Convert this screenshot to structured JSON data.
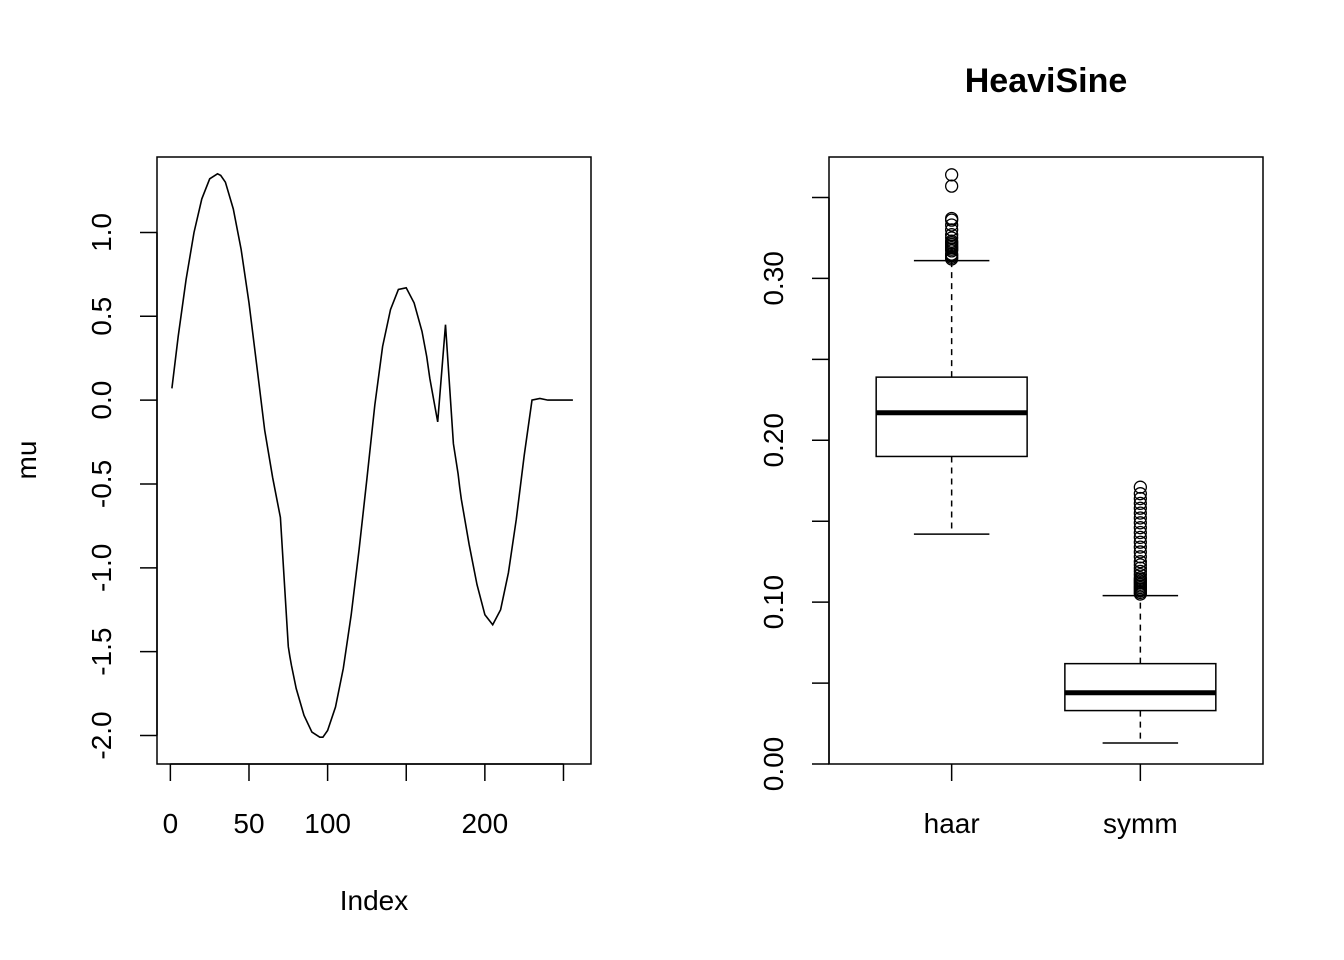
{
  "chart_data": [
    {
      "type": "line",
      "title": "",
      "xlabel": "Index",
      "ylabel": "mu",
      "xlim": [
        -8.5,
        267.5
      ],
      "ylim": [
        -2.17,
        1.45
      ],
      "x_ticks": [
        0,
        50,
        100,
        150,
        200,
        250
      ],
      "x_tick_labels": [
        "0",
        "50",
        "100",
        "",
        "200",
        ""
      ],
      "y_ticks": [
        -2.0,
        -1.5,
        -1.0,
        -0.5,
        0.0,
        0.5,
        1.0
      ],
      "y_tick_labels": [
        "-2.0",
        "-1.5",
        "-1.0",
        "-0.5",
        "0.0",
        "0.5",
        "1.0"
      ],
      "series": [
        {
          "x": [
            1,
            5,
            10,
            15,
            20,
            25,
            30,
            32,
            35,
            40,
            45,
            50,
            55,
            60,
            65,
            70,
            75,
            76,
            77,
            80,
            85,
            90,
            95,
            97,
            100,
            105,
            110,
            115,
            120,
            125,
            130,
            135,
            140,
            145,
            150,
            155,
            160,
            163,
            165,
            170,
            175,
            180,
            183,
            184,
            185,
            190,
            195,
            200,
            205,
            210,
            215,
            220,
            225,
            230,
            235,
            240,
            245,
            250,
            255,
            256
          ],
          "y": [
            0.07,
            0.38,
            0.72,
            1.0,
            1.2,
            1.32,
            1.35,
            1.34,
            1.3,
            1.14,
            0.9,
            0.58,
            0.2,
            -0.18,
            -0.46,
            -0.7,
            -1.47,
            -1.53,
            -1.58,
            -1.72,
            -1.88,
            -1.98,
            -2.01,
            -2.01,
            -1.97,
            -1.83,
            -1.6,
            -1.28,
            -0.89,
            -0.47,
            -0.03,
            0.32,
            0.54,
            0.66,
            0.67,
            0.58,
            0.41,
            0.26,
            0.13,
            -0.13,
            0.45,
            -0.26,
            -0.44,
            -0.52,
            -0.59,
            -0.86,
            -1.1,
            -1.28,
            -1.34,
            -1.25,
            -1.03,
            -0.71,
            -0.33,
            0.0,
            0.01,
            0.0,
            0.0,
            0.0,
            0.0,
            0.0
          ]
        }
      ]
    },
    {
      "type": "box",
      "title": "HeaviSine",
      "xlabel": "",
      "ylabel": "",
      "ylim": [
        0,
        0.375
      ],
      "y_ticks": [
        0.0,
        0.05,
        0.1,
        0.15,
        0.2,
        0.25,
        0.3,
        0.35
      ],
      "y_tick_labels": [
        "0.00",
        "",
        "0.10",
        "",
        "0.20",
        "",
        "0.30",
        ""
      ],
      "categories": [
        "haar",
        "symm"
      ],
      "boxes": [
        {
          "name": "haar",
          "whisker_low": 0.142,
          "q1": 0.19,
          "median": 0.217,
          "q3": 0.239,
          "whisker_high": 0.311,
          "outliers": [
            0.312,
            0.313,
            0.314,
            0.315,
            0.317,
            0.318,
            0.319,
            0.32,
            0.321,
            0.322,
            0.323,
            0.325,
            0.327,
            0.33,
            0.333,
            0.336,
            0.337,
            0.357,
            0.364
          ]
        },
        {
          "name": "symm",
          "whisker_low": 0.013,
          "q1": 0.033,
          "median": 0.044,
          "q3": 0.062,
          "whisker_high": 0.104,
          "outliers": [
            0.105,
            0.106,
            0.107,
            0.108,
            0.109,
            0.11,
            0.111,
            0.112,
            0.113,
            0.114,
            0.115,
            0.117,
            0.119,
            0.121,
            0.123,
            0.125,
            0.128,
            0.131,
            0.134,
            0.137,
            0.14,
            0.143,
            0.146,
            0.149,
            0.152,
            0.155,
            0.158,
            0.161,
            0.164,
            0.167,
            0.171
          ]
        }
      ]
    }
  ]
}
